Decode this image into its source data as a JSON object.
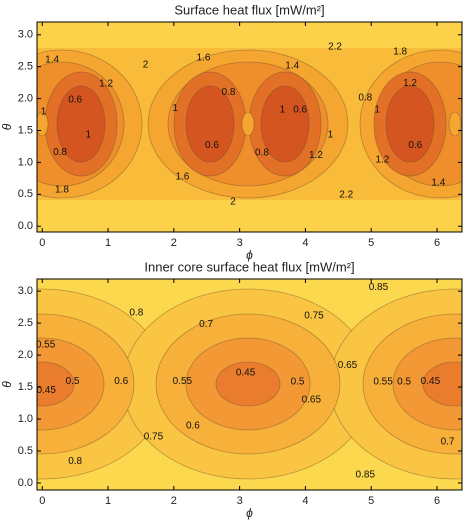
{
  "chart_data": [
    {
      "type": "contour",
      "title": "Surface heat flux [mW/m²]",
      "xlabel": "ϕ",
      "ylabel": "θ",
      "xlim": [
        -0.08,
        6.38
      ],
      "ylim": [
        -0.09,
        3.2
      ],
      "xticks": [
        0,
        1,
        2,
        3,
        4,
        5,
        6
      ],
      "yticks": [
        {
          "value": 0,
          "label": "0.0"
        },
        0.5,
        {
          "value": 1,
          "label": "1.0"
        },
        1.5,
        {
          "value": 2,
          "label": "2.0"
        },
        2.5,
        {
          "value": 3,
          "label": "3.0"
        }
      ],
      "contour_labels": [
        {
          "value": 2.2,
          "x": 4.45,
          "y": 2.81
        },
        {
          "value": 1.8,
          "x": 5.44,
          "y": 2.73
        },
        {
          "value": 1.4,
          "x": 0.15,
          "y": 2.61
        },
        {
          "value": 2,
          "x": 1.57,
          "y": 2.53
        },
        {
          "value": 1.6,
          "x": 2.45,
          "y": 2.64
        },
        {
          "value": 1.4,
          "x": 3.8,
          "y": 2.51
        },
        {
          "value": 1.2,
          "x": 0.97,
          "y": 2.23
        },
        {
          "value": 1.2,
          "x": 5.59,
          "y": 2.24
        },
        {
          "value": 0.6,
          "x": 0.5,
          "y": 1.98
        },
        {
          "value": 0.8,
          "x": 2.83,
          "y": 2.1
        },
        {
          "value": 0.8,
          "x": 4.91,
          "y": 2.01
        },
        {
          "value": 1,
          "x": 0.02,
          "y": 1.79
        },
        {
          "value": 1,
          "x": 2.02,
          "y": 1.85
        },
        {
          "value": 1,
          "x": 3.65,
          "y": 1.82
        },
        {
          "value": 1,
          "x": 5.09,
          "y": 1.82
        },
        {
          "value": 0.6,
          "x": 3.92,
          "y": 1.82
        },
        {
          "value": 1,
          "x": 0.7,
          "y": 1.43
        },
        {
          "value": 1,
          "x": 4.38,
          "y": 1.43
        },
        {
          "value": 0.6,
          "x": 2.58,
          "y": 1.27
        },
        {
          "value": 0.6,
          "x": 5.67,
          "y": 1.27
        },
        {
          "value": 0.8,
          "x": 0.27,
          "y": 1.16
        },
        {
          "value": 0.8,
          "x": 3.34,
          "y": 1.15
        },
        {
          "value": 1.2,
          "x": 4.16,
          "y": 1.11
        },
        {
          "value": 1.2,
          "x": 5.17,
          "y": 1.04
        },
        {
          "value": 1.6,
          "x": 2.13,
          "y": 0.77
        },
        {
          "value": 1.4,
          "x": 6.02,
          "y": 0.68
        },
        {
          "value": 1.8,
          "x": 0.3,
          "y": 0.57
        },
        {
          "value": 2.2,
          "x": 4.62,
          "y": 0.49
        },
        {
          "value": 2,
          "x": 2.9,
          "y": 0.38
        }
      ]
    },
    {
      "type": "contour",
      "title": "Inner core surface heat flux [mW/m²]",
      "xlabel": "ϕ",
      "ylabel": "θ",
      "xlim": [
        -0.08,
        6.38
      ],
      "ylim": [
        -0.11,
        3.19
      ],
      "xticks": [
        0,
        1,
        2,
        3,
        4,
        5,
        6
      ],
      "yticks": [
        {
          "value": 0,
          "label": "0.0"
        },
        0.5,
        {
          "value": 1,
          "label": "1.0"
        },
        1.5,
        {
          "value": 2,
          "label": "2.0"
        },
        2.5,
        {
          "value": 3,
          "label": "3.0"
        }
      ],
      "contour_labels": [
        {
          "value": 0.85,
          "x": 5.11,
          "y": 3.06
        },
        {
          "value": 0.8,
          "x": 1.43,
          "y": 2.66
        },
        {
          "value": 0.75,
          "x": 4.13,
          "y": 2.61
        },
        {
          "value": 0.7,
          "x": 2.49,
          "y": 2.48
        },
        {
          "value": 0.55,
          "x": 0.05,
          "y": 2.16
        },
        {
          "value": 0.65,
          "x": 4.64,
          "y": 1.84
        },
        {
          "value": 0.5,
          "x": 0.46,
          "y": 1.59
        },
        {
          "value": 0.6,
          "x": 1.2,
          "y": 1.59
        },
        {
          "value": 0.55,
          "x": 2.13,
          "y": 1.59
        },
        {
          "value": 0.45,
          "x": 3.09,
          "y": 1.72
        },
        {
          "value": 0.5,
          "x": 3.88,
          "y": 1.58
        },
        {
          "value": 0.55,
          "x": 5.18,
          "y": 1.58
        },
        {
          "value": 0.5,
          "x": 5.5,
          "y": 1.58
        },
        {
          "value": 0.45,
          "x": 5.9,
          "y": 1.59
        },
        {
          "value": 0.45,
          "x": 0.06,
          "y": 1.45
        },
        {
          "value": 0.65,
          "x": 4.09,
          "y": 1.3
        },
        {
          "value": 0.6,
          "x": 2.29,
          "y": 0.89
        },
        {
          "value": 0.75,
          "x": 1.69,
          "y": 0.72
        },
        {
          "value": 0.7,
          "x": 6.16,
          "y": 0.64
        },
        {
          "value": 0.8,
          "x": 0.5,
          "y": 0.34
        },
        {
          "value": 0.85,
          "x": 4.91,
          "y": 0.13
        }
      ]
    }
  ]
}
